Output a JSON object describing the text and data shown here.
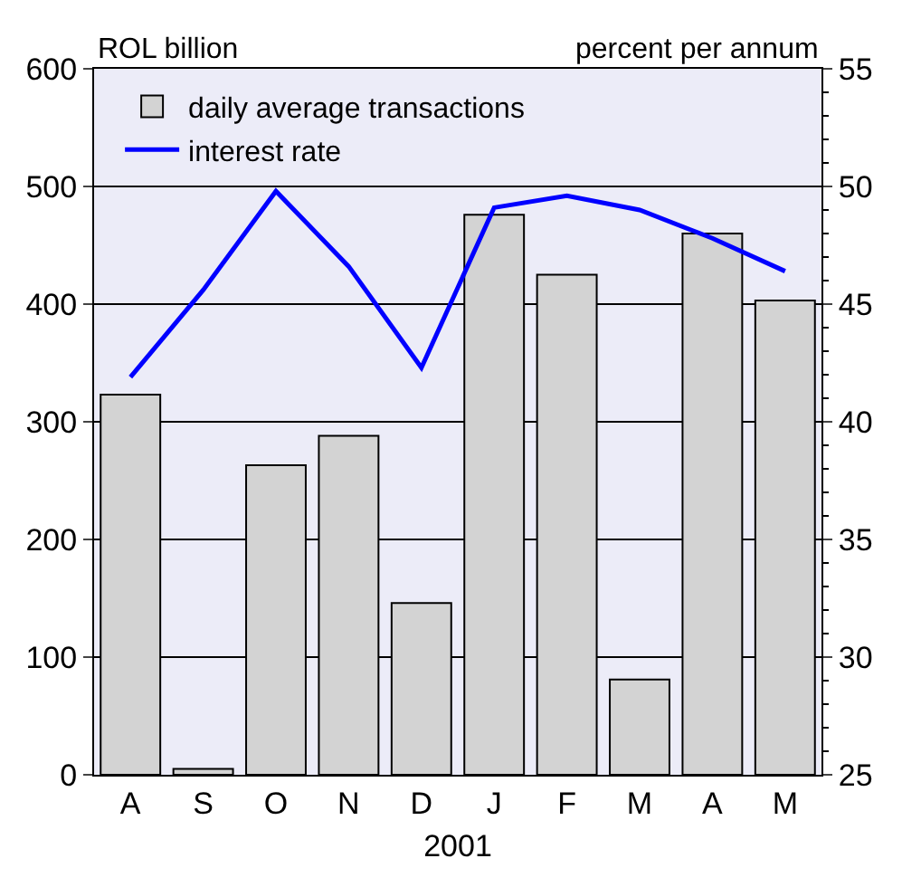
{
  "chart_data": {
    "type": "bar",
    "xlabel": "2001",
    "ylabel": "ROL billion",
    "y2label": "percent per annum",
    "categories": [
      "A",
      "S",
      "O",
      "N",
      "D",
      "J",
      "F",
      "M",
      "A",
      "M"
    ],
    "series": [
      {
        "name": "daily average transactions",
        "color": "#d3d3d3",
        "values": [
          323,
          5,
          263,
          288,
          146,
          476,
          425,
          81,
          460,
          403
        ]
      },
      {
        "name": "interest rate",
        "type": "line",
        "axis": "y2",
        "color": "#0000ff",
        "values": [
          41.9,
          45.6,
          49.8,
          46.6,
          42.3,
          49.1,
          49.6,
          49.0,
          47.8,
          46.4
        ]
      }
    ],
    "ylim": [
      0,
      600
    ],
    "yticks": [
      0,
      100,
      200,
      300,
      400,
      500,
      600
    ],
    "y2lim": [
      25,
      55
    ],
    "y2ticks": [
      25,
      30,
      35,
      40,
      45,
      50,
      55
    ],
    "grid": "y",
    "legend": "top left",
    "marker": "none",
    "line_style": "solid"
  }
}
